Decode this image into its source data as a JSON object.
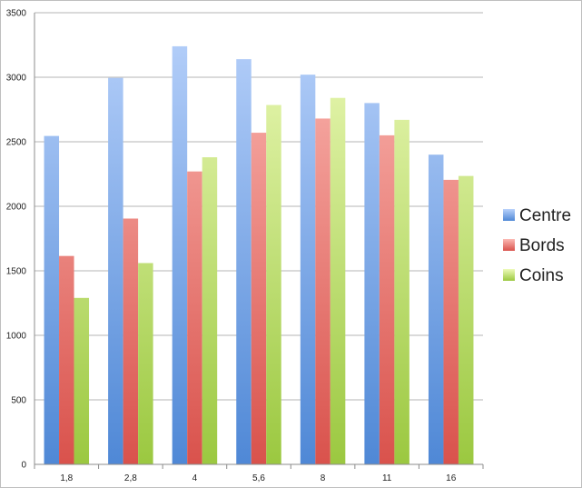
{
  "chart_data": {
    "type": "bar",
    "categories": [
      "1,8",
      "2,8",
      "4",
      "5,6",
      "8",
      "11",
      "16"
    ],
    "series": [
      {
        "name": "Centre",
        "values": [
          2545,
          2995,
          3240,
          3140,
          3020,
          2800,
          2400
        ]
      },
      {
        "name": "Bords",
        "values": [
          1615,
          1905,
          2270,
          2570,
          2680,
          2550,
          2205
        ]
      },
      {
        "name": "Coins",
        "values": [
          1290,
          1560,
          2380,
          2785,
          2840,
          2670,
          2235
        ]
      }
    ],
    "ylim": [
      0,
      3500
    ],
    "yticks": [
      0,
      500,
      1000,
      1500,
      2000,
      2500,
      3000,
      3500
    ],
    "grid": true,
    "legend_position": "right",
    "colors": {
      "Centre": {
        "top": "#b9d2fb",
        "bottom": "#4f88d6"
      },
      "Bords": {
        "top": "#fcbab4",
        "bottom": "#d9524c"
      },
      "Coins": {
        "top": "#eefbbb",
        "bottom": "#9bc840"
      }
    }
  }
}
